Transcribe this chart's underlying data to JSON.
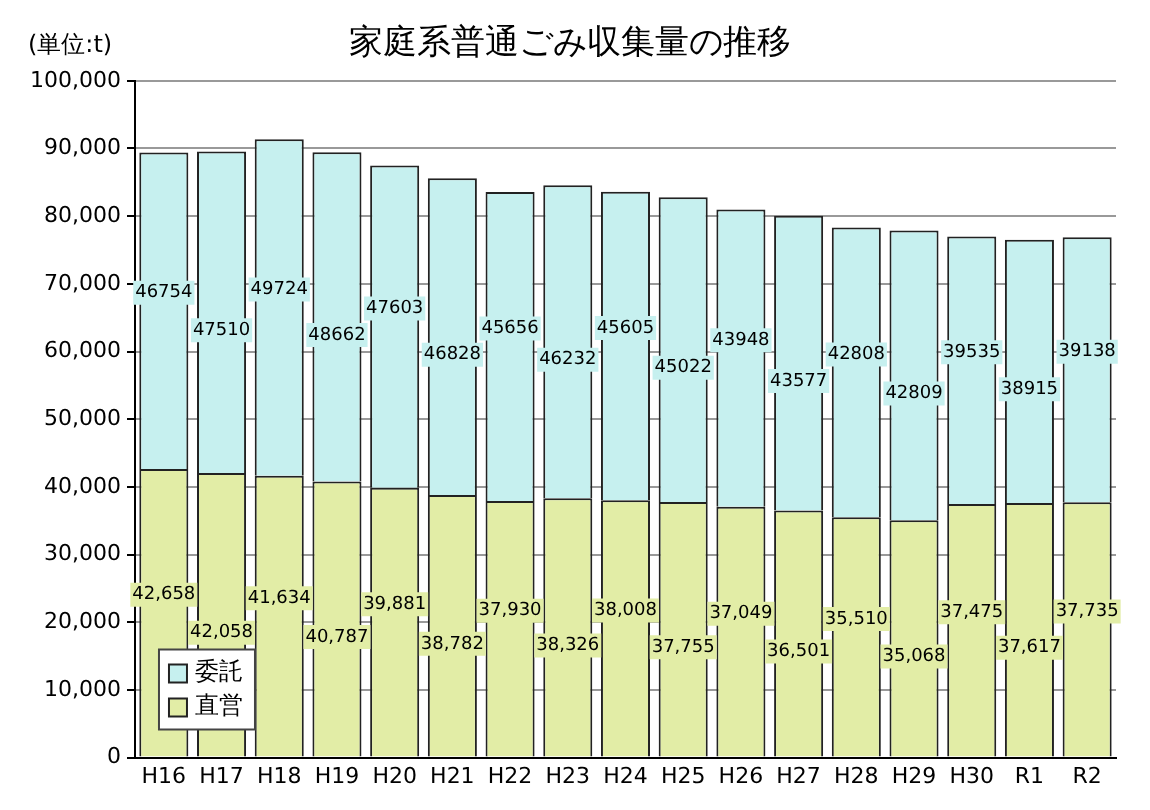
{
  "chart_data": {
    "type": "bar",
    "title": "家庭系普通ごみ収集量の推移",
    "ylabel": "(単位:t)",
    "stacked": true,
    "categories": [
      "H16",
      "H17",
      "H18",
      "H19",
      "H20",
      "H21",
      "H22",
      "H23",
      "H24",
      "H25",
      "H26",
      "H27",
      "H28",
      "H29",
      "H30",
      "R1",
      "R2"
    ],
    "series": [
      {
        "name": "直営",
        "color": "#e2eda6",
        "values": [
          42658,
          42058,
          41634,
          40787,
          39881,
          38782,
          37930,
          38326,
          38008,
          37755,
          37049,
          36501,
          35510,
          35068,
          37475,
          37617,
          37735
        ],
        "value_labels": [
          "42,658",
          "42,058",
          "41,634",
          "40,787",
          "39,881",
          "38,782",
          "37,930",
          "38,326",
          "38,008",
          "37,755",
          "37,049",
          "36,501",
          "35,510",
          "35,068",
          "37,475",
          "37,617",
          "37,735"
        ]
      },
      {
        "name": "委託",
        "color": "#c6f0ef",
        "values": [
          46754,
          47510,
          49724,
          48662,
          47603,
          46828,
          45656,
          46232,
          45605,
          45022,
          43948,
          43577,
          42808,
          42809,
          39535,
          38915,
          39138
        ],
        "value_labels": [
          "46754",
          "47510",
          "49724",
          "48662",
          "47603",
          "46828",
          "45656",
          "46232",
          "45605",
          "45022",
          "43948",
          "43577",
          "42808",
          "42809",
          "39535",
          "38915",
          "39138"
        ]
      }
    ],
    "ylim": [
      0,
      100000
    ],
    "yticks": [
      0,
      {
        "value": 10000,
        "label": "10,000"
      },
      {
        "value": 20000,
        "label": "20,000"
      },
      {
        "value": 30000,
        "label": "30,000"
      },
      {
        "value": 40000,
        "label": "40,000"
      },
      {
        "value": 50000,
        "label": "50,000"
      },
      {
        "value": 60000,
        "label": "60,000"
      },
      {
        "value": 70000,
        "label": "70,000"
      },
      {
        "value": 80000,
        "label": "80,000"
      },
      {
        "value": 90000,
        "label": "90,000"
      },
      {
        "value": 100000,
        "label": "100,000"
      }
    ],
    "grid": "y",
    "legend": "bottom left"
  }
}
